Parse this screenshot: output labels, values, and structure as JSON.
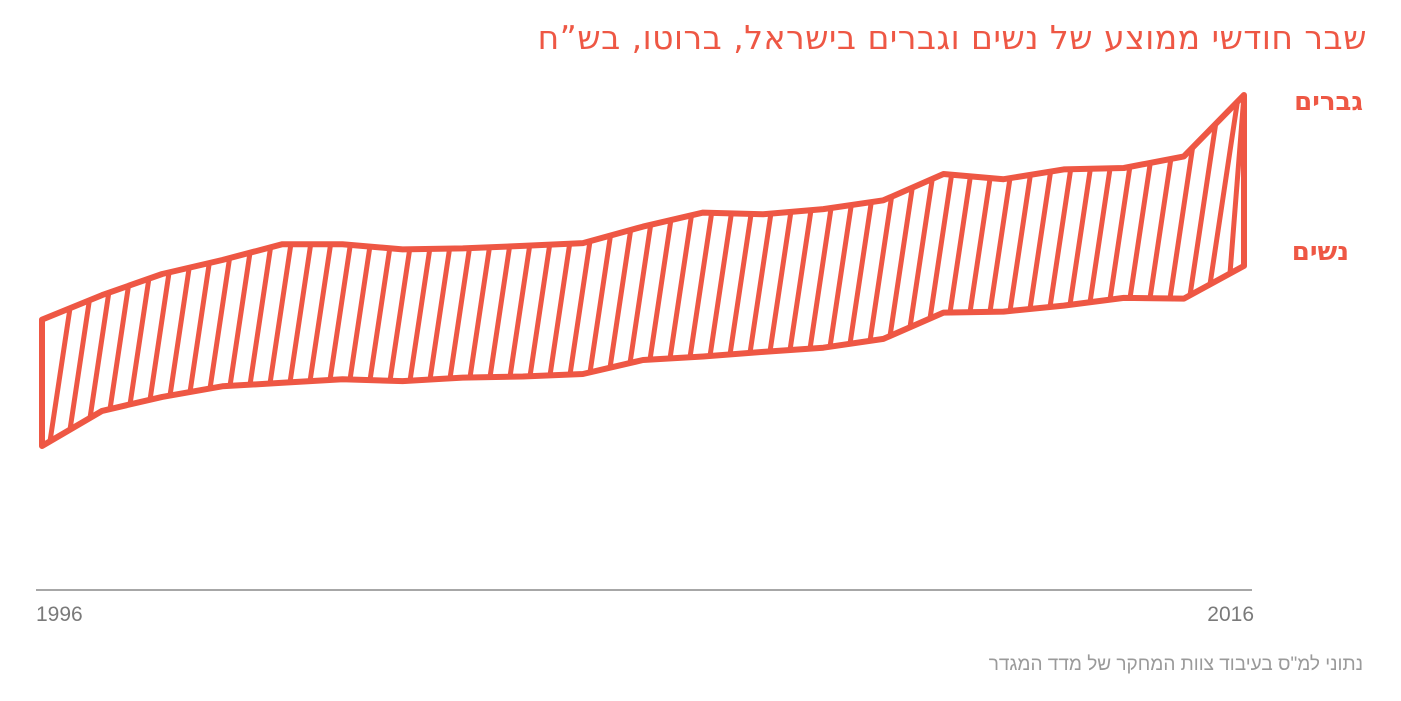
{
  "title": "שבר חודשי ממוצע של נשים וגברים בישראל, ברוטו, בש”ח",
  "source": "נתוני למ\"ס בעיבוד צוות המחקר של מדד המגדר",
  "colors": {
    "accent": "#ee5744",
    "axis": "#8a8a8a",
    "tick_text": "#7a7a7a",
    "source_text": "#9a9a9a"
  },
  "chart_data": {
    "type": "area",
    "title": "שבר חודשי ממוצע של נשים וגברים בישראל, ברוטו, בש”ח",
    "x": [
      1996,
      1997,
      1998,
      1999,
      2000,
      2001,
      2002,
      2003,
      2004,
      2005,
      2006,
      2007,
      2008,
      2009,
      2010,
      2011,
      2012,
      2013,
      2014,
      2015,
      2016
    ],
    "x_tick_labels": [
      "1996",
      "2016"
    ],
    "series": [
      {
        "name": "גברים",
        "values": [
          0.36,
          0.43,
          0.49,
          0.53,
          0.575,
          0.575,
          0.56,
          0.563,
          0.57,
          0.578,
          0.625,
          0.665,
          0.66,
          0.675,
          0.7,
          0.775,
          0.76,
          0.788,
          0.792,
          0.825,
          1.0
        ]
      },
      {
        "name": "נשים",
        "values": [
          0.0,
          0.1,
          0.14,
          0.17,
          0.18,
          0.19,
          0.185,
          0.195,
          0.198,
          0.205,
          0.245,
          0.255,
          0.268,
          0.28,
          0.305,
          0.38,
          0.383,
          0.4,
          0.422,
          0.42,
          0.513
        ]
      }
    ],
    "fill_between": true,
    "fill_pattern": "diagonal-hatch",
    "y_axis_labels": false,
    "grid": false,
    "legend": "right, next to series ends"
  }
}
